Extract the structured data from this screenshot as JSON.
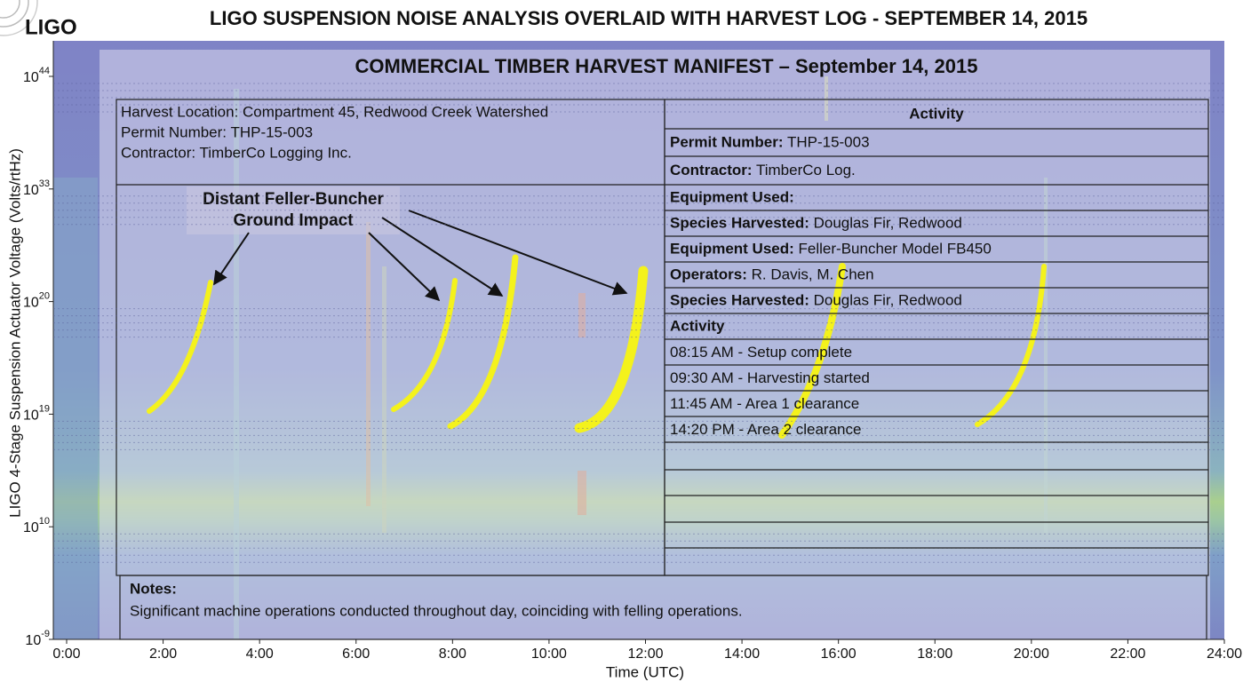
{
  "chart_data": {
    "type": "spectrogram",
    "logo": "LIGO",
    "title": "LIGO SUSPENSION NOISE ANALYSIS OVERLAID WITH HARVEST LOG - SEPTEMBER 14, 2015",
    "xlabel": "Time (UTC)",
    "ylabel": "LIGO 4-Stage Suspension Actuator Voltage (Volts/rtHz)",
    "xlim": [
      0,
      24
    ],
    "xticks": [
      {
        "value": 0,
        "label": "0:00"
      },
      {
        "value": 2,
        "label": "2:00"
      },
      {
        "value": 4,
        "label": "4:00"
      },
      {
        "value": 6,
        "label": "6:00"
      },
      {
        "value": 8,
        "label": "8:00"
      },
      {
        "value": 10,
        "label": "10:00"
      },
      {
        "value": 12,
        "label": "12:00"
      },
      {
        "value": 14,
        "label": "14:00"
      },
      {
        "value": 16,
        "label": "16:00"
      },
      {
        "value": 18,
        "label": "18:00"
      },
      {
        "value": 20,
        "label": "20:00"
      },
      {
        "value": 22,
        "label": "22:00"
      },
      {
        "value": 24,
        "label": "24:00"
      }
    ],
    "yticks": [
      {
        "base": "10",
        "exponent": "44"
      },
      {
        "base": "10",
        "exponent": "33"
      },
      {
        "base": "10",
        "exponent": "20"
      },
      {
        "base": "10",
        "exponent": "19"
      },
      {
        "base": "10",
        "exponent": "10"
      },
      {
        "base": "10",
        "exponent": "-9"
      }
    ],
    "annotation": [
      "Distant Feller-Buncher",
      "Ground Impact"
    ]
  },
  "manifest": {
    "title": "COMMERCIAL TIMBER HARVEST MANIFEST – September 14, 2015",
    "info": [
      "Harvest Location: Compartment 45, Redwood Creek Watershed",
      "Permit Number: THP-15-003",
      "Contractor: TimberCo Logging Inc."
    ],
    "table_header": "Activity",
    "rows": [
      {
        "label": "Permit Number:",
        "value": "THP-15-003"
      },
      {
        "label": "Contractor:",
        "value": "TimberCo Log."
      },
      {
        "label": "Equipment Used:"
      },
      {
        "label": "Species Harvested:",
        "value": "Douglas Fir, Redwood"
      },
      {
        "label": "Equipment Used:",
        "value": "Feller-Buncher Model FB450"
      },
      {
        "label": "Operators:",
        "value": "R. Davis, M. Chen"
      },
      {
        "label": "Species Harvested:",
        "value": "Douglas Fir, Redwood"
      },
      {
        "label": "Activity"
      }
    ],
    "activities": [
      "08:15 AM - Setup complete",
      "09:30 AM - Harvesting started",
      "11:45 AM - Area 1 clearance",
      "14:20 PM - Area 2 clearance"
    ],
    "notes_label": "Notes:",
    "notes": "Significant machine operations conducted throughout day, coinciding with felling operations."
  }
}
